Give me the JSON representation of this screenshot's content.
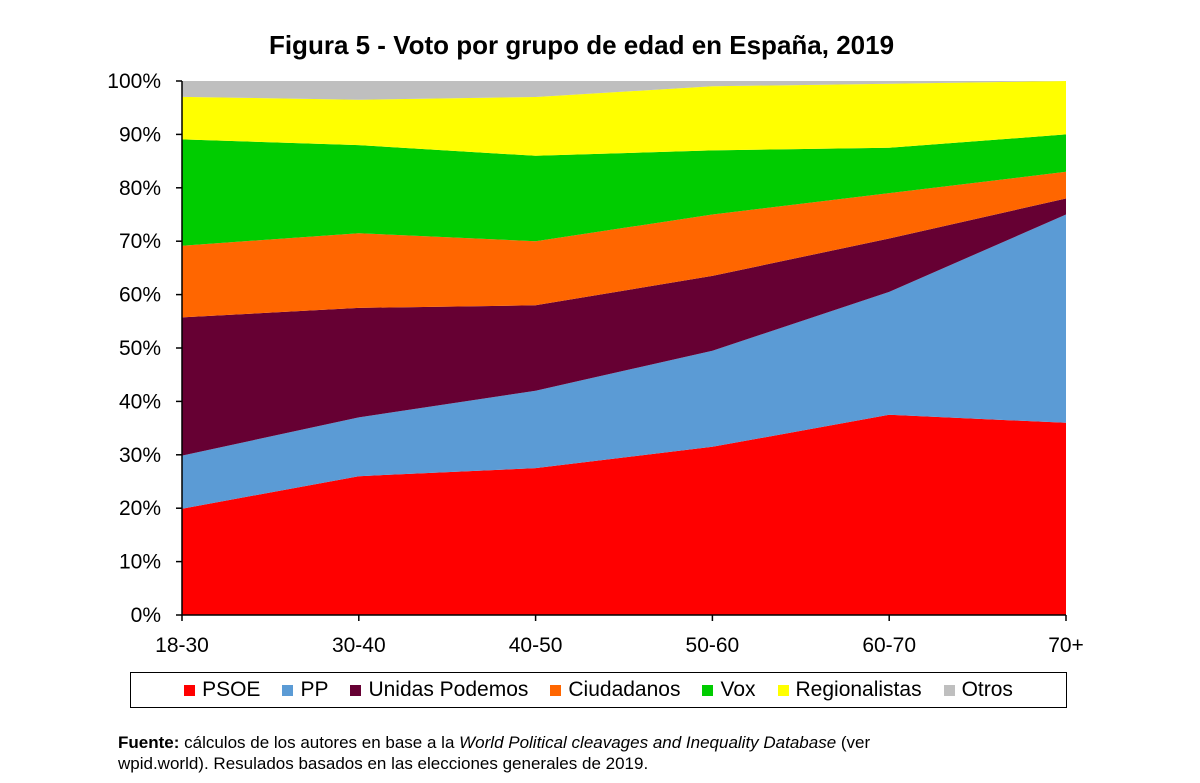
{
  "title": "Figura 5 - Voto por grupo de edad en España, 2019",
  "source": {
    "label": "Fuente:",
    "text_before": " cálculos de los autores en base a la ",
    "database_name": "World Political cleavages and Inequality Database",
    "text_after": " (ver wpid.world). Resulados basados en las elecciones generales de 2019."
  },
  "chart_data": {
    "type": "area",
    "stacked": true,
    "percent": true,
    "title": "Figura 5 - Voto por grupo de edad en España, 2019",
    "categories": [
      "18-30",
      "30-40",
      "40-50",
      "50-60",
      "60-70",
      "70+"
    ],
    "y_ticks": [
      "0%",
      "10%",
      "20%",
      "30%",
      "40%",
      "50%",
      "60%",
      "70%",
      "80%",
      "90%",
      "100%"
    ],
    "ylim": [
      0,
      100
    ],
    "grid": false,
    "legend_position": "bottom",
    "series": [
      {
        "name": "PSOE",
        "color": "#ff0000",
        "values": [
          20,
          26,
          27.5,
          31.5,
          37.5,
          36
        ]
      },
      {
        "name": "PP",
        "color": "#5b9bd5",
        "values": [
          10,
          11,
          14.5,
          18,
          23,
          39
        ]
      },
      {
        "name": "Unidas Podemos",
        "color": "#660033",
        "values": [
          26,
          20.5,
          16,
          14,
          10,
          3
        ]
      },
      {
        "name": "Ciudadanos",
        "color": "#ff6600",
        "values": [
          13.5,
          14,
          12,
          11.5,
          8.5,
          5
        ]
      },
      {
        "name": "Vox",
        "color": "#00cc00",
        "values": [
          20,
          16.5,
          16,
          12,
          8.5,
          7
        ]
      },
      {
        "name": "Regionalistas",
        "color": "#ffff00",
        "values": [
          8,
          8.5,
          11,
          12,
          12,
          10
        ]
      },
      {
        "name": "Otros",
        "color": "#bfbfbf",
        "values": [
          3,
          3.5,
          3,
          1,
          0.5,
          0
        ]
      }
    ]
  }
}
